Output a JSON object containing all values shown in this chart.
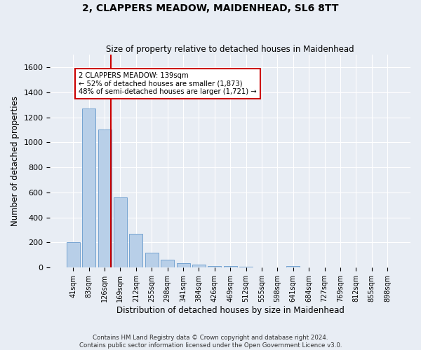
{
  "title": "2, CLAPPERS MEADOW, MAIDENHEAD, SL6 8TT",
  "subtitle": "Size of property relative to detached houses in Maidenhead",
  "xlabel": "Distribution of detached houses by size in Maidenhead",
  "ylabel": "Number of detached properties",
  "bar_values": [
    200,
    1270,
    1100,
    560,
    270,
    120,
    60,
    35,
    25,
    15,
    15,
    5,
    0,
    0,
    15,
    0,
    0,
    0,
    0,
    0,
    0
  ],
  "bar_labels": [
    "41sqm",
    "83sqm",
    "126sqm",
    "169sqm",
    "212sqm",
    "255sqm",
    "298sqm",
    "341sqm",
    "384sqm",
    "426sqm",
    "469sqm",
    "512sqm",
    "555sqm",
    "598sqm",
    "641sqm",
    "684sqm",
    "727sqm",
    "769sqm",
    "812sqm",
    "855sqm",
    "898sqm"
  ],
  "bar_color": "#b8cfe8",
  "bar_edge_color": "#6699cc",
  "vline_x": 2.42,
  "vline_color": "#cc0000",
  "annotation_text_line1": "2 CLAPPERS MEADOW: 139sqm",
  "annotation_text_line2": "← 52% of detached houses are smaller (1,873)",
  "annotation_text_line3": "48% of semi-detached houses are larger (1,721) →",
  "ylim": [
    0,
    1700
  ],
  "yticks": [
    0,
    200,
    400,
    600,
    800,
    1000,
    1200,
    1400,
    1600
  ],
  "bg_color": "#e8edf4",
  "grid_color": "#ffffff",
  "footer_line1": "Contains HM Land Registry data © Crown copyright and database right 2024.",
  "footer_line2": "Contains public sector information licensed under the Open Government Licence v3.0."
}
